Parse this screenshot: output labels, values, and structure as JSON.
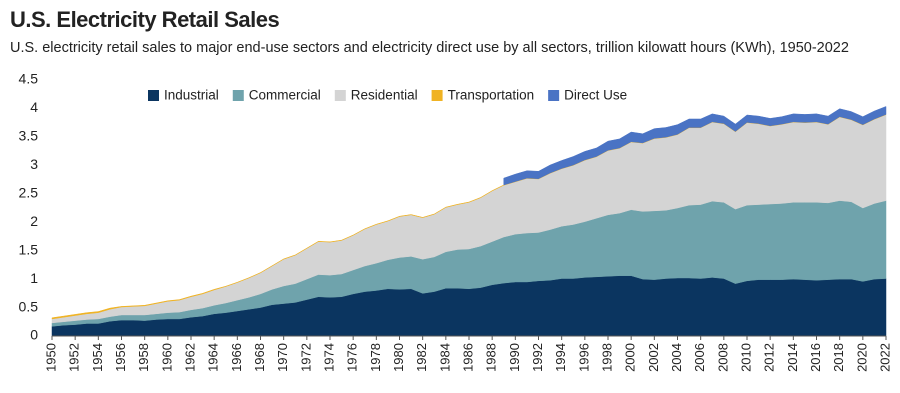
{
  "chart_data": {
    "type": "stacked-area",
    "title": "U.S. Electricity Retail Sales",
    "subtitle": "U.S. electricity retail sales to major end-use sectors and electricity direct use by all sectors, trillion kilowatt hours (KWh), 1950-2022",
    "x": [
      1950,
      1951,
      1952,
      1953,
      1954,
      1955,
      1956,
      1957,
      1958,
      1959,
      1960,
      1961,
      1962,
      1963,
      1964,
      1965,
      1966,
      1967,
      1968,
      1969,
      1970,
      1971,
      1972,
      1973,
      1974,
      1975,
      1976,
      1977,
      1978,
      1979,
      1980,
      1981,
      1982,
      1983,
      1984,
      1985,
      1986,
      1987,
      1988,
      1989,
      1990,
      1991,
      1992,
      1993,
      1994,
      1995,
      1996,
      1997,
      1998,
      1999,
      2000,
      2001,
      2002,
      2003,
      2004,
      2005,
      2006,
      2007,
      2008,
      2009,
      2010,
      2011,
      2012,
      2013,
      2014,
      2015,
      2016,
      2017,
      2018,
      2019,
      2020,
      2021,
      2022
    ],
    "xlim": [
      1950,
      2022
    ],
    "xticks": [
      1950,
      1952,
      1954,
      1956,
      1958,
      1960,
      1962,
      1964,
      1966,
      1968,
      1970,
      1972,
      1974,
      1976,
      1978,
      1980,
      1982,
      1984,
      1986,
      1988,
      1990,
      1992,
      1994,
      1996,
      1998,
      2000,
      2002,
      2004,
      2006,
      2008,
      2010,
      2012,
      2014,
      2016,
      2018,
      2020,
      2022
    ],
    "ylim": [
      0,
      4.5
    ],
    "yticks": [
      0,
      0.5,
      1,
      1.5,
      2,
      2.5,
      3,
      3.5,
      4,
      4.5
    ],
    "grid": false,
    "legend": "top",
    "series": [
      {
        "name": "Industrial",
        "color": "#0b3560",
        "values": [
          0.17,
          0.19,
          0.2,
          0.22,
          0.22,
          0.26,
          0.28,
          0.28,
          0.27,
          0.29,
          0.3,
          0.3,
          0.33,
          0.35,
          0.39,
          0.41,
          0.44,
          0.47,
          0.5,
          0.55,
          0.57,
          0.59,
          0.64,
          0.69,
          0.68,
          0.69,
          0.74,
          0.78,
          0.8,
          0.83,
          0.82,
          0.83,
          0.75,
          0.78,
          0.84,
          0.84,
          0.83,
          0.85,
          0.9,
          0.93,
          0.95,
          0.95,
          0.97,
          0.98,
          1.01,
          1.01,
          1.03,
          1.04,
          1.05,
          1.06,
          1.06,
          1.0,
          0.99,
          1.01,
          1.02,
          1.02,
          1.01,
          1.03,
          1.01,
          0.92,
          0.97,
          0.99,
          0.99,
          0.99,
          1.0,
          0.99,
          0.98,
          0.99,
          1.0,
          1.0,
          0.96,
          1.0,
          1.01
        ]
      },
      {
        "name": "Commercial",
        "color": "#6fa3ac",
        "values": [
          0.06,
          0.06,
          0.07,
          0.07,
          0.08,
          0.08,
          0.09,
          0.09,
          0.1,
          0.1,
          0.11,
          0.12,
          0.13,
          0.14,
          0.15,
          0.17,
          0.19,
          0.21,
          0.24,
          0.27,
          0.31,
          0.33,
          0.36,
          0.39,
          0.39,
          0.4,
          0.42,
          0.45,
          0.48,
          0.51,
          0.56,
          0.57,
          0.6,
          0.61,
          0.64,
          0.68,
          0.7,
          0.73,
          0.76,
          0.81,
          0.84,
          0.86,
          0.85,
          0.89,
          0.92,
          0.95,
          0.98,
          1.03,
          1.08,
          1.1,
          1.16,
          1.19,
          1.21,
          1.2,
          1.23,
          1.28,
          1.3,
          1.34,
          1.34,
          1.31,
          1.33,
          1.32,
          1.33,
          1.34,
          1.35,
          1.36,
          1.37,
          1.35,
          1.38,
          1.36,
          1.29,
          1.33,
          1.37
        ]
      },
      {
        "name": "Residential",
        "color": "#d4d4d4",
        "values": [
          0.07,
          0.08,
          0.09,
          0.1,
          0.11,
          0.13,
          0.14,
          0.15,
          0.16,
          0.18,
          0.2,
          0.21,
          0.23,
          0.25,
          0.27,
          0.29,
          0.31,
          0.34,
          0.37,
          0.41,
          0.47,
          0.5,
          0.54,
          0.58,
          0.58,
          0.59,
          0.61,
          0.65,
          0.68,
          0.68,
          0.72,
          0.73,
          0.73,
          0.75,
          0.78,
          0.79,
          0.82,
          0.85,
          0.89,
          0.91,
          0.92,
          0.96,
          0.94,
          0.99,
          1.01,
          1.04,
          1.08,
          1.08,
          1.13,
          1.14,
          1.19,
          1.2,
          1.27,
          1.28,
          1.29,
          1.36,
          1.35,
          1.39,
          1.38,
          1.36,
          1.45,
          1.42,
          1.37,
          1.39,
          1.41,
          1.4,
          1.41,
          1.38,
          1.47,
          1.44,
          1.46,
          1.48,
          1.51
        ]
      },
      {
        "name": "Transportation",
        "color": "#f0b323",
        "values": [
          0.02,
          0.02,
          0.02,
          0.02,
          0.02,
          0.02,
          0.01,
          0.01,
          0.01,
          0.01,
          0.01,
          0.01,
          0.01,
          0.01,
          0.01,
          0.005,
          0.005,
          0.005,
          0.005,
          0.005,
          0.005,
          0.005,
          0.005,
          0.005,
          0.005,
          0.005,
          0.005,
          0.005,
          0.005,
          0.005,
          0.005,
          0.005,
          0.005,
          0.005,
          0.005,
          0.005,
          0.005,
          0.005,
          0.005,
          0.005,
          0.005,
          0.005,
          0.005,
          0.005,
          0.005,
          0.005,
          0.005,
          0.005,
          0.005,
          0.005,
          0.005,
          0.005,
          0.005,
          0.005,
          0.005,
          0.005,
          0.005,
          0.005,
          0.005,
          0.005,
          0.005,
          0.005,
          0.005,
          0.005,
          0.005,
          0.005,
          0.005,
          0.005,
          0.005,
          0.005,
          0.005,
          0.005,
          0.005
        ]
      },
      {
        "name": "Direct Use",
        "color": "#4a73c4",
        "values": [
          null,
          null,
          null,
          null,
          null,
          null,
          null,
          null,
          null,
          null,
          null,
          null,
          null,
          null,
          null,
          null,
          null,
          null,
          null,
          null,
          null,
          null,
          null,
          null,
          null,
          null,
          null,
          null,
          null,
          null,
          null,
          null,
          null,
          null,
          null,
          null,
          null,
          null,
          null,
          0.12,
          0.13,
          0.13,
          0.13,
          0.14,
          0.14,
          0.15,
          0.15,
          0.15,
          0.16,
          0.16,
          0.17,
          0.16,
          0.17,
          0.17,
          0.17,
          0.15,
          0.15,
          0.14,
          0.13,
          0.13,
          0.13,
          0.13,
          0.13,
          0.13,
          0.14,
          0.14,
          0.14,
          0.14,
          0.14,
          0.14,
          0.14,
          0.14,
          0.14
        ]
      }
    ]
  }
}
